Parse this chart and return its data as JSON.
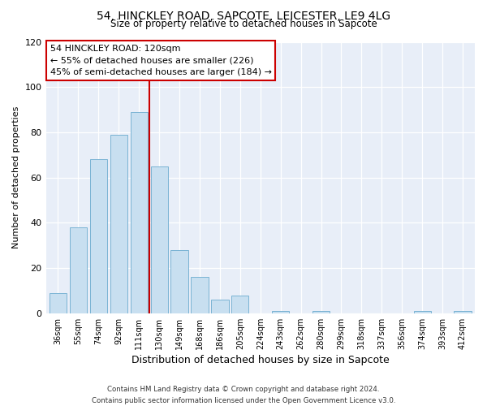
{
  "title": "54, HINCKLEY ROAD, SAPCOTE, LEICESTER, LE9 4LG",
  "subtitle": "Size of property relative to detached houses in Sapcote",
  "xlabel": "Distribution of detached houses by size in Sapcote",
  "ylabel": "Number of detached properties",
  "bar_labels": [
    "36sqm",
    "55sqm",
    "74sqm",
    "92sqm",
    "111sqm",
    "130sqm",
    "149sqm",
    "168sqm",
    "186sqm",
    "205sqm",
    "224sqm",
    "243sqm",
    "262sqm",
    "280sqm",
    "299sqm",
    "318sqm",
    "337sqm",
    "356sqm",
    "374sqm",
    "393sqm",
    "412sqm"
  ],
  "bar_values": [
    9,
    38,
    68,
    79,
    89,
    65,
    28,
    16,
    6,
    8,
    0,
    1,
    0,
    1,
    0,
    0,
    0,
    0,
    1,
    0,
    1
  ],
  "bar_color": "#c8dff0",
  "bar_edge_color": "#7ab3d4",
  "vline_x": 4.5,
  "vline_color": "#cc0000",
  "ylim": [
    0,
    120
  ],
  "yticks": [
    0,
    20,
    40,
    60,
    80,
    100,
    120
  ],
  "annotation_title": "54 HINCKLEY ROAD: 120sqm",
  "annotation_line1": "← 55% of detached houses are smaller (226)",
  "annotation_line2": "45% of semi-detached houses are larger (184) →",
  "footer_line1": "Contains HM Land Registry data © Crown copyright and database right 2024.",
  "footer_line2": "Contains public sector information licensed under the Open Government Licence v3.0.",
  "background_color": "#ffffff",
  "plot_bg_color": "#e8eef8"
}
